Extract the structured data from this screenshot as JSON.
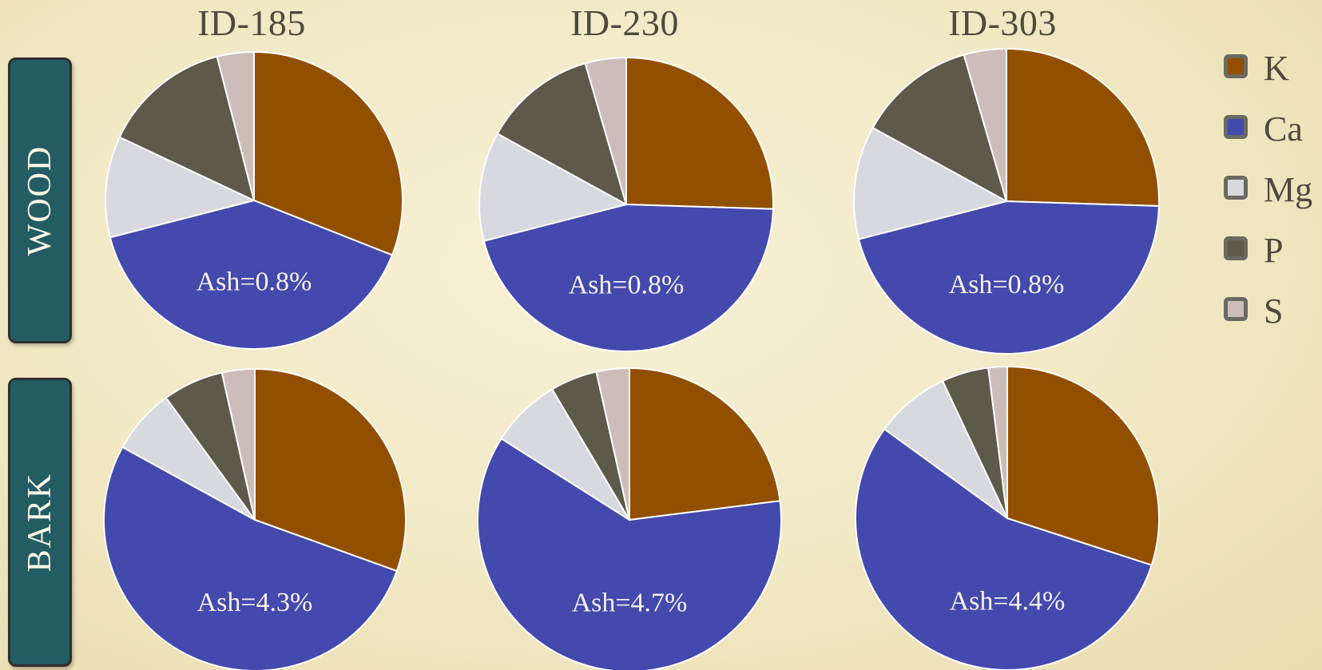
{
  "columns": [
    {
      "title": "ID-185"
    },
    {
      "title": "ID-230"
    },
    {
      "title": "ID-303"
    }
  ],
  "rows": [
    {
      "label": "WOOD"
    },
    {
      "label": "BARK"
    }
  ],
  "legend": [
    {
      "label": "K",
      "color": "#924f00"
    },
    {
      "label": "Ca",
      "color": "#4349ad"
    },
    {
      "label": "Mg",
      "color": "#d8d9de"
    },
    {
      "label": "P",
      "color": "#5d594b"
    },
    {
      "label": "S",
      "color": "#cdbdb9"
    }
  ],
  "chart_data": [
    {
      "type": "pie",
      "title": "ID-185",
      "row": "WOOD",
      "categories": [
        "K",
        "Ca",
        "Mg",
        "P",
        "S"
      ],
      "values": [
        31,
        40,
        11,
        14,
        4
      ],
      "annotation": "Ash=0.8%"
    },
    {
      "type": "pie",
      "title": "ID-230",
      "row": "WOOD",
      "categories": [
        "K",
        "Ca",
        "Mg",
        "P",
        "S"
      ],
      "values": [
        25.5,
        45.5,
        12,
        12.5,
        4.5
      ],
      "annotation": "Ash=0.8%"
    },
    {
      "type": "pie",
      "title": "ID-303",
      "row": "WOOD",
      "categories": [
        "K",
        "Ca",
        "Mg",
        "P",
        "S"
      ],
      "values": [
        25.5,
        45.5,
        12,
        12.5,
        4.5
      ],
      "annotation": "Ash=0.8%"
    },
    {
      "type": "pie",
      "title": "ID-185",
      "row": "BARK",
      "categories": [
        "K",
        "Ca",
        "Mg",
        "P",
        "S"
      ],
      "values": [
        30.5,
        52.5,
        7,
        6.5,
        3.5
      ],
      "annotation": "Ash=4.3%"
    },
    {
      "type": "pie",
      "title": "ID-230",
      "row": "BARK",
      "categories": [
        "K",
        "Ca",
        "Mg",
        "P",
        "S"
      ],
      "values": [
        23,
        61,
        7.5,
        5,
        3.5
      ],
      "annotation": "Ash=4.7%"
    },
    {
      "type": "pie",
      "title": "ID-303",
      "row": "BARK",
      "categories": [
        "K",
        "Ca",
        "Mg",
        "P",
        "S"
      ],
      "values": [
        30,
        55,
        8,
        5,
        2
      ],
      "annotation": "Ash=4.4%"
    }
  ]
}
